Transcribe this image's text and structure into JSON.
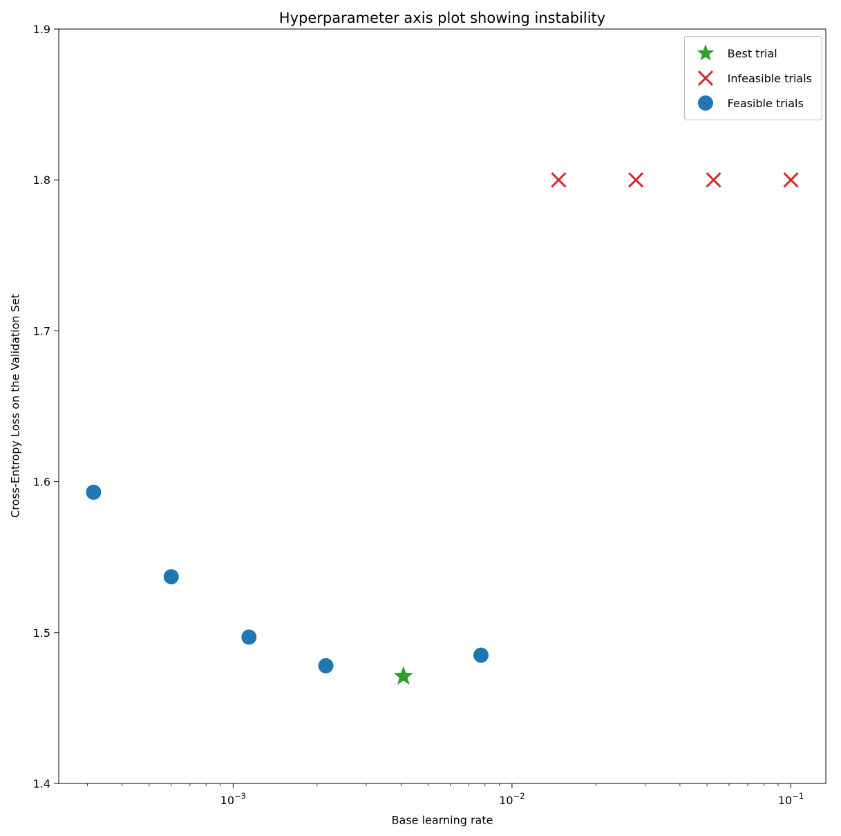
{
  "figure": {
    "background": "#ffffff"
  },
  "legend": [
    {
      "label": "Best trial",
      "marker": "star",
      "color": "#2ca02c"
    },
    {
      "label": "Infeasible trials",
      "marker": "x",
      "color": "#d62728"
    },
    {
      "label": "Feasible trials",
      "marker": "circle",
      "color": "#1f77b4"
    }
  ],
  "chart_data": {
    "type": "scatter",
    "title": "Hyperparameter axis plot showing instability",
    "xlabel": "Base learning rate",
    "ylabel": "Cross-Entropy Loss on the Validation Set",
    "x_scale": "log",
    "xlim": [
      0.000237,
      0.1334
    ],
    "ylim": [
      1.4,
      1.9
    ],
    "grid": false,
    "legend_position": "upper right",
    "x_ticks": [
      {
        "value": 0.001,
        "base": "10",
        "exp": "−3"
      },
      {
        "value": 0.01,
        "base": "10",
        "exp": "−2"
      },
      {
        "value": 0.1,
        "base": "10",
        "exp": "−1"
      }
    ],
    "y_ticks": [
      {
        "value": 1.4,
        "label": "1.4"
      },
      {
        "value": 1.5,
        "label": "1.5"
      },
      {
        "value": 1.6,
        "label": "1.6"
      },
      {
        "value": 1.7,
        "label": "1.7"
      },
      {
        "value": 1.8,
        "label": "1.8"
      },
      {
        "value": 1.9,
        "label": "1.9"
      }
    ],
    "series": [
      {
        "name": "Feasible trials",
        "marker": "circle",
        "color": "#1f77b4",
        "x": [
          0.000316,
          0.0006,
          0.00114,
          0.00215,
          0.00774
        ],
        "y": [
          1.593,
          1.537,
          1.497,
          1.478,
          1.485
        ]
      },
      {
        "name": "Best trial",
        "marker": "star",
        "color": "#2ca02c",
        "x": [
          0.00408
        ],
        "y": [
          1.471
        ]
      },
      {
        "name": "Infeasible trials",
        "marker": "x",
        "color": "#d62728",
        "x": [
          0.0147,
          0.0278,
          0.0528,
          0.1
        ],
        "y": [
          1.8,
          1.8,
          1.8,
          1.8
        ]
      }
    ]
  }
}
